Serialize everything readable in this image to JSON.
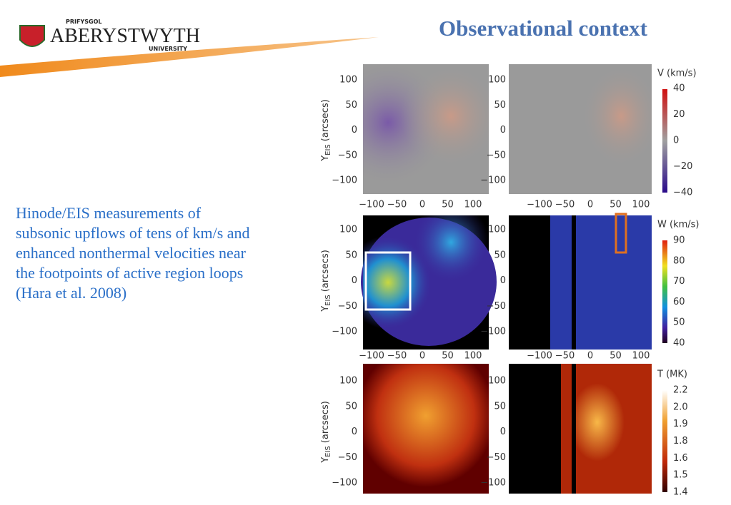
{
  "header": {
    "logo_small": "PRIFYSGOL",
    "logo_main": "ABERYSTWYTH",
    "logo_sub": "UNIVERSITY",
    "title": "Observational context"
  },
  "body": {
    "lines": [
      "Hinode/EIS measurements of",
      "subsonic upflows of tens of km/s and",
      "enhanced nonthermal velocities near",
      "the footpoints of active region loops",
      "(Hara et al. 2008)"
    ]
  },
  "figure": {
    "y_axis_label": {
      "main": "Y",
      "sub": "EIS",
      "unit": "(arcsecs)"
    },
    "y_ticks": [
      "100",
      "50",
      "0",
      "−50",
      "−100"
    ],
    "x_ticks": [
      "−100",
      "−50",
      "0",
      "50",
      "100"
    ],
    "colorbars": [
      {
        "title": "V (km/s)",
        "ticks": [
          "40",
          "20",
          "0",
          "−20",
          "−40"
        ]
      },
      {
        "title": "W (km/s)",
        "ticks": [
          "90",
          "80",
          "70",
          "60",
          "50",
          "40"
        ]
      },
      {
        "title": "T (MK)",
        "ticks": [
          "2.2",
          "2.0",
          "1.9",
          "1.8",
          "1.6",
          "1.5",
          "1.4"
        ]
      }
    ]
  }
}
